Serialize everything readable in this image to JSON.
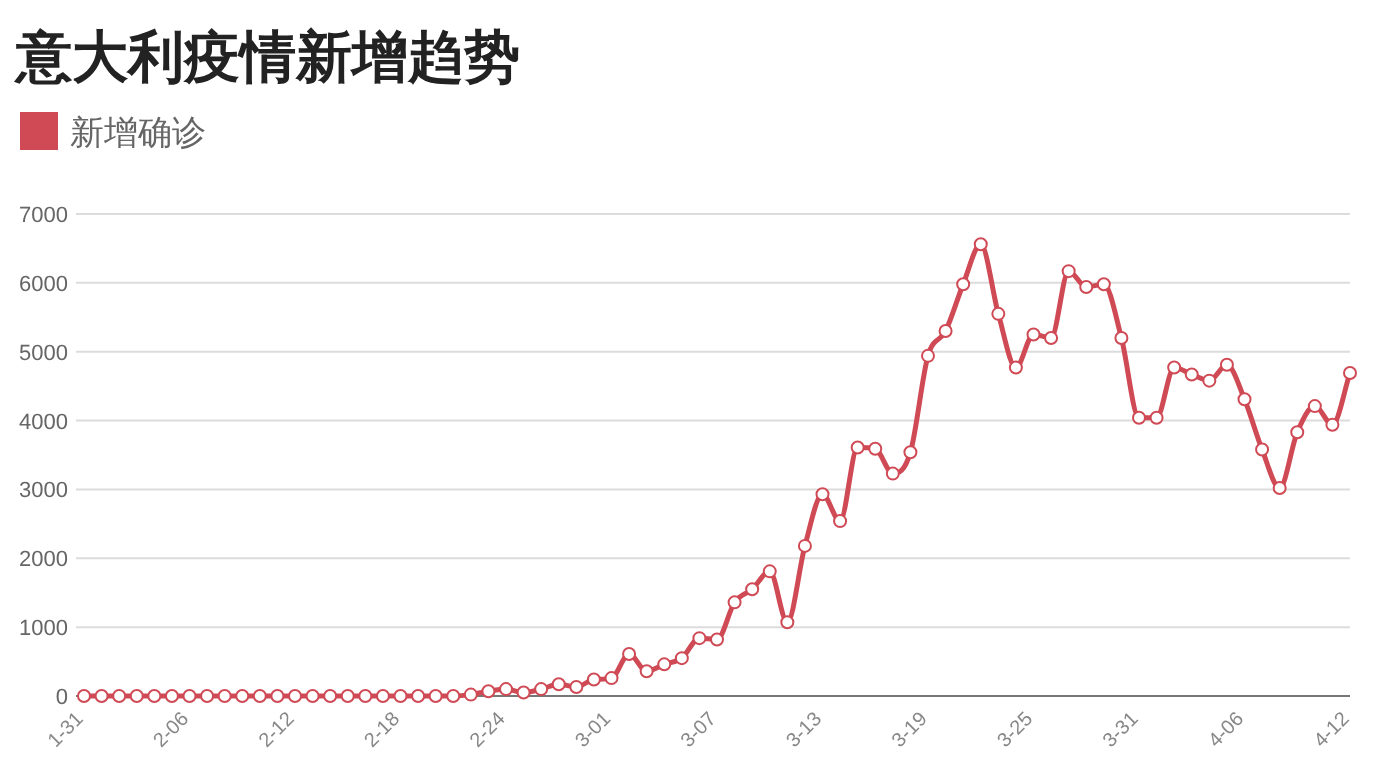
{
  "chart_data": {
    "type": "line",
    "title": "意大利疫情新增趋势",
    "categories": [
      "1-31",
      null,
      null,
      null,
      null,
      null,
      "2-06",
      null,
      null,
      null,
      null,
      null,
      "2-12",
      null,
      null,
      null,
      null,
      null,
      "2-18",
      null,
      null,
      null,
      null,
      null,
      "2-24",
      null,
      null,
      null,
      null,
      null,
      "3-01",
      null,
      null,
      null,
      null,
      null,
      "3-07",
      null,
      null,
      null,
      null,
      null,
      "3-13",
      null,
      null,
      null,
      null,
      null,
      "3-19",
      null,
      null,
      null,
      null,
      null,
      "3-25",
      null,
      null,
      null,
      null,
      null,
      "3-31",
      null,
      null,
      null,
      null,
      null,
      "4-06",
      null,
      null,
      null,
      null,
      null,
      "4-12"
    ],
    "series": [
      {
        "name": "新增确诊",
        "color": "#cf4a55",
        "values": [
          0,
          0,
          0,
          0,
          0,
          0,
          0,
          0,
          0,
          0,
          0,
          0,
          0,
          0,
          0,
          0,
          0,
          0,
          0,
          0,
          0,
          0,
          20,
          70,
          100,
          50,
          100,
          170,
          130,
          240,
          260,
          610,
          360,
          460,
          550,
          840,
          820,
          1360,
          1550,
          1810,
          1070,
          2180,
          2930,
          2540,
          3610,
          3590,
          3230,
          3540,
          4940,
          5300,
          5980,
          6560,
          5550,
          4770,
          5250,
          5200,
          6170,
          5940,
          5980,
          5200,
          4040,
          4040,
          4770,
          4670,
          4580,
          4810,
          4310,
          3580,
          3020,
          3830,
          4210,
          3940,
          4690
        ]
      }
    ],
    "ylim": [
      0,
      7000
    ],
    "yticks": [
      0,
      1000,
      2000,
      3000,
      4000,
      5000,
      6000,
      7000
    ],
    "grid": "y",
    "legend": "top left",
    "marker": "circle",
    "line_style": "solid"
  }
}
